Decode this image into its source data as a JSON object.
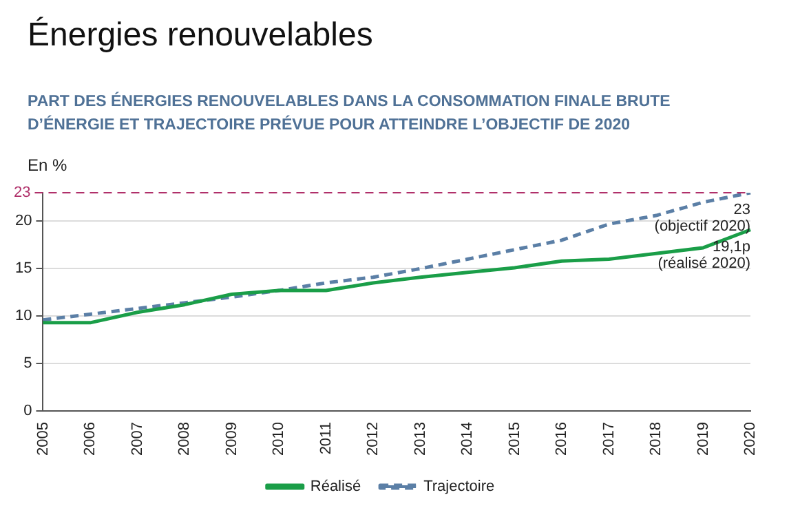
{
  "chart_data": {
    "type": "line",
    "title": "Énergies renouvelables",
    "subtitle": "PART DES ÉNERGIES RENOUVELABLES DANS LA CONSOMMATION FINALE BRUTE D’ÉNERGIE ET TRAJECTOIRE PRÉVUE POUR ATTEINDRE L’OBJECTIF DE 2020",
    "ylabel": "En %",
    "categories": [
      "2005",
      "2006",
      "2007",
      "2008",
      "2009",
      "2010",
      "2011",
      "2012",
      "2013",
      "2014",
      "2015",
      "2016",
      "2017",
      "2018",
      "2019",
      "2020"
    ],
    "series": [
      {
        "name": "Réalisé",
        "color": "#1a9e48",
        "line_style": "solid",
        "values": [
          9.3,
          9.3,
          10.4,
          11.2,
          12.3,
          12.7,
          12.7,
          13.5,
          14.1,
          14.6,
          15.1,
          15.8,
          16.0,
          16.6,
          17.2,
          19.1
        ]
      },
      {
        "name": "Trajectoire",
        "color": "#5b7fa6",
        "line_style": "dashed",
        "values": [
          9.6,
          10.2,
          10.8,
          11.4,
          12.0,
          12.7,
          13.5,
          14.1,
          15.0,
          16.0,
          17.0,
          18.0,
          19.7,
          20.6,
          22.0,
          23
        ]
      }
    ],
    "ylim": [
      0,
      23
    ],
    "yticks": [
      0,
      5,
      10,
      15,
      20
    ],
    "ref_lines": [
      {
        "axis": "y",
        "value": 23,
        "label": "23",
        "color": "#b0306a",
        "line_style": "dashed"
      }
    ],
    "annotations": [
      {
        "text": "23\n(objectif 2020)",
        "x": "2020",
        "y": 23
      },
      {
        "text": "19,1p\n(réalisé 2020)",
        "x": "2020",
        "y": 19.1
      }
    ],
    "grid": "y",
    "legend": "bottom",
    "marker": "none"
  }
}
